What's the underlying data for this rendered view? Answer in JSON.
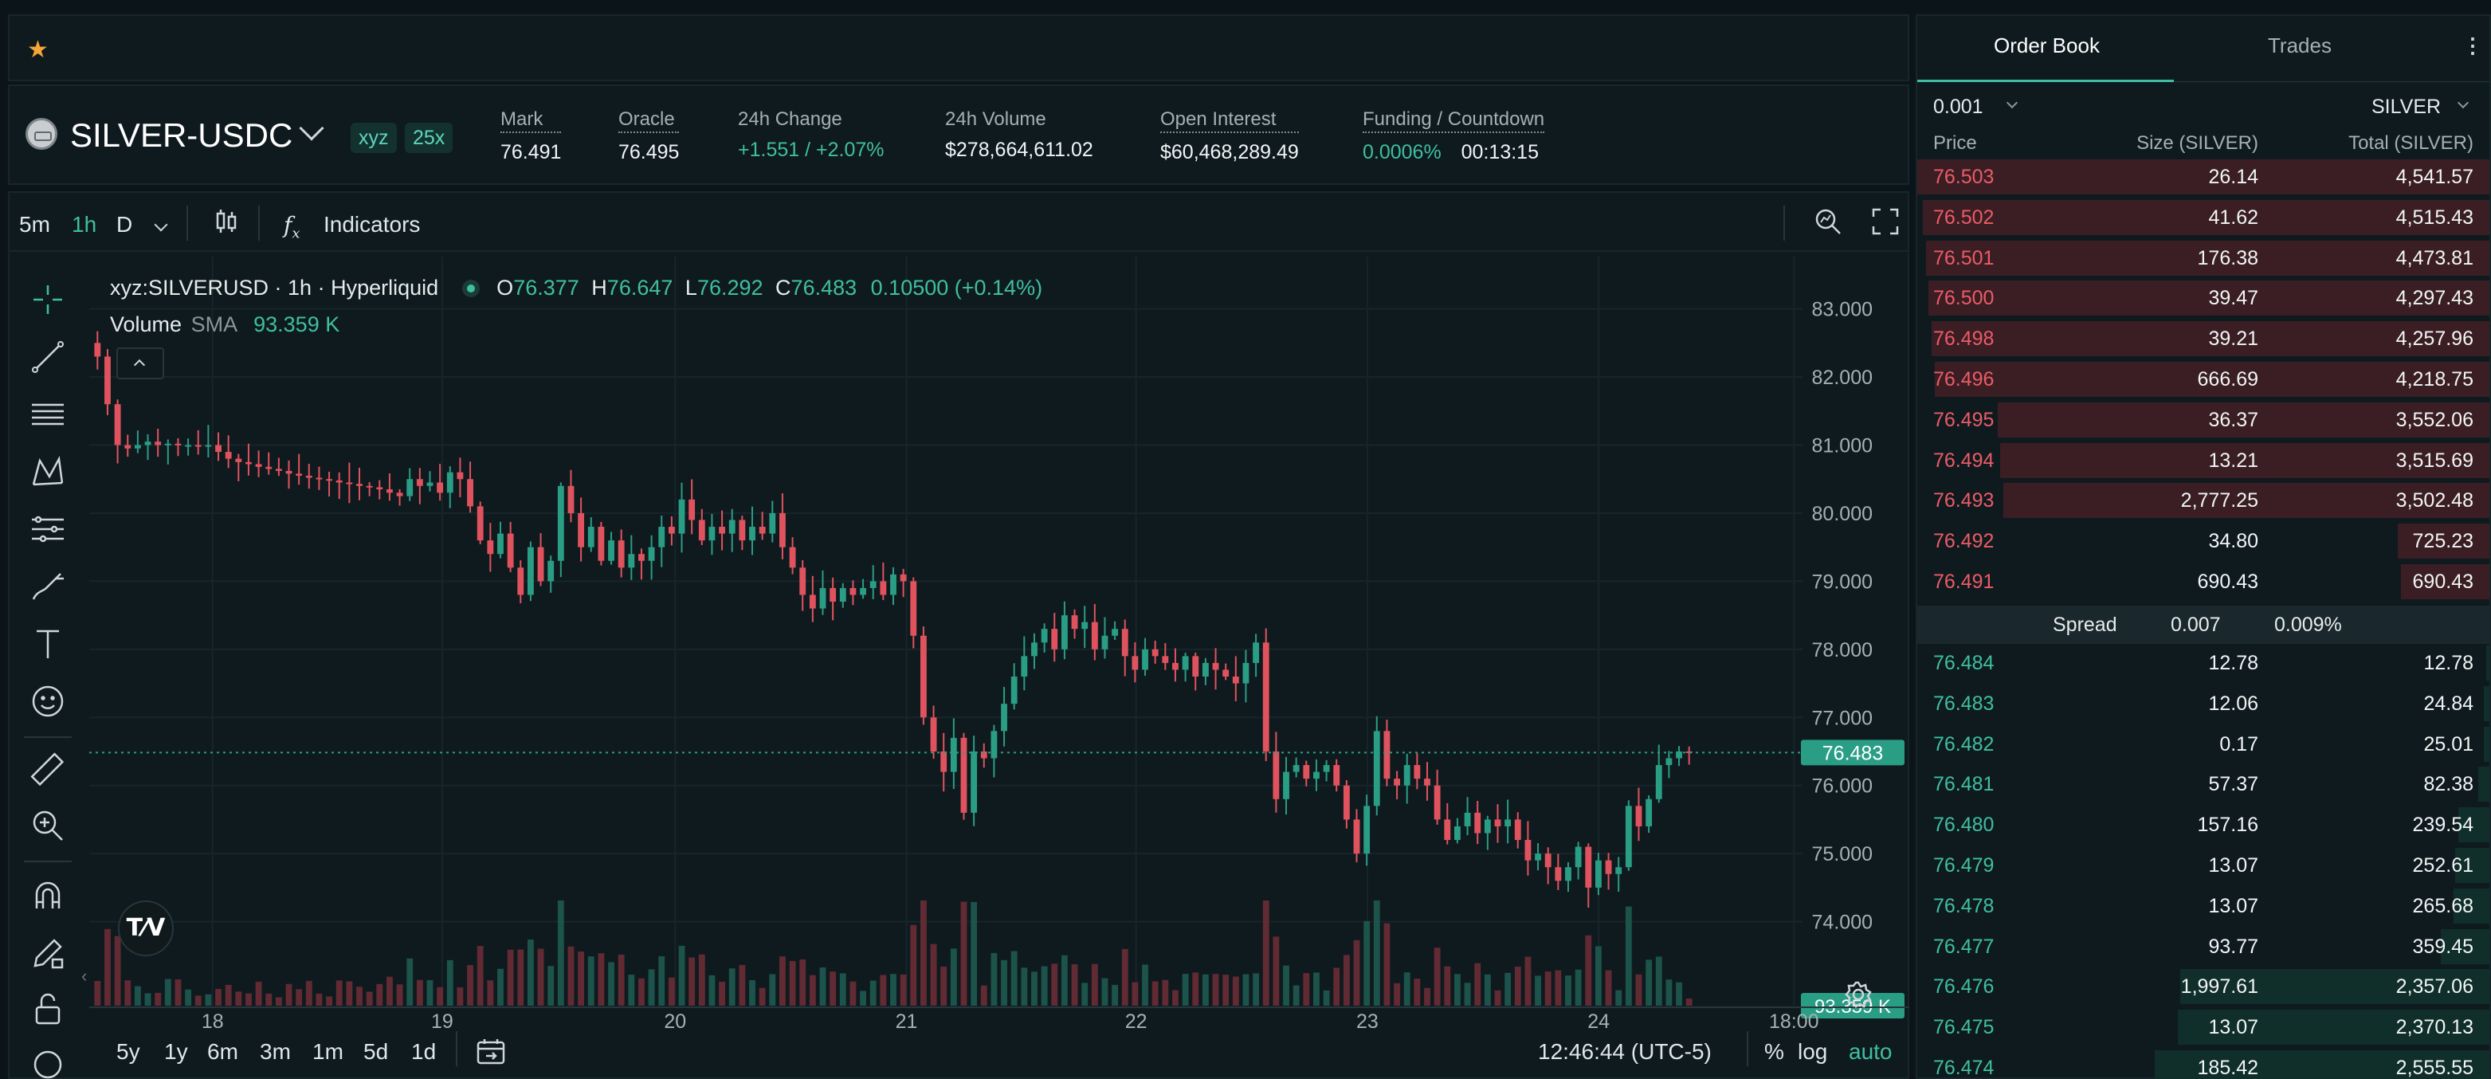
{
  "favorites": {
    "star_icon": "star-icon"
  },
  "header": {
    "symbol": "SILVER-USDC",
    "badges": [
      "xyz",
      "25x"
    ],
    "stats": [
      {
        "label": "Mark",
        "value": "76.491"
      },
      {
        "label": "Oracle",
        "value": "76.495"
      },
      {
        "label": "24h Change",
        "value": "+1.551 / +2.07%"
      },
      {
        "label": "24h Volume",
        "value": "$278,664,611.02"
      },
      {
        "label": "Open Interest",
        "value": "$60,468,289.49"
      },
      {
        "label": "Funding / Countdown",
        "value": "0.0006%",
        "value2": "00:13:15"
      }
    ]
  },
  "toolbar": {
    "intervals": [
      "5m",
      "1h",
      "D"
    ],
    "active_interval": "1h",
    "indicators_label": "Indicators"
  },
  "legend": {
    "symbol": "xyz:SILVERUSD · 1h · Hyperliquid",
    "o_label": "O",
    "o": "76.377",
    "h_label": "H",
    "h": "76.647",
    "l_label": "L",
    "l": "76.292",
    "c_label": "C",
    "c": "76.483",
    "change": "0.10500 (+0.14%)",
    "volume_label": "Volume",
    "sma_label": "SMA",
    "volume_value": "93.359 K"
  },
  "chart_data": {
    "type": "candlestick",
    "x_ticks": [
      "18",
      "19",
      "20",
      "21",
      "22",
      "23",
      "24",
      "18:00"
    ],
    "y_ticks": [
      "83.000",
      "82.000",
      "81.000",
      "80.000",
      "79.000",
      "78.000",
      "77.000",
      "76.000",
      "75.000",
      "74.000"
    ],
    "ylim": [
      73.0,
      83.3
    ],
    "last_price": "76.483",
    "last_volume": "93.359 K",
    "closes": [
      82.3,
      81.6,
      81.0,
      80.95,
      81.0,
      81.05,
      81.0,
      81.02,
      81.0,
      81.0,
      80.98,
      81.0,
      80.9,
      80.8,
      80.75,
      80.72,
      80.68,
      80.65,
      80.62,
      80.58,
      80.55,
      80.52,
      80.5,
      80.48,
      80.45,
      80.43,
      80.4,
      80.38,
      80.35,
      80.3,
      80.25,
      80.5,
      80.4,
      80.45,
      80.3,
      80.6,
      80.5,
      80.1,
      79.6,
      79.4,
      79.7,
      79.2,
      78.8,
      79.5,
      79.0,
      79.3,
      80.4,
      80.0,
      79.5,
      79.8,
      79.3,
      79.6,
      79.2,
      79.4,
      79.3,
      79.5,
      79.8,
      79.7,
      80.2,
      79.9,
      79.6,
      79.8,
      79.7,
      79.9,
      79.6,
      79.8,
      79.7,
      80.0,
      79.5,
      79.2,
      78.8,
      78.6,
      78.9,
      78.7,
      78.9,
      78.8,
      78.9,
      79.0,
      78.8,
      79.1,
      79.0,
      78.2,
      77.0,
      76.5,
      76.2,
      76.7,
      75.6,
      76.5,
      76.4,
      76.8,
      77.2,
      77.6,
      77.9,
      78.1,
      78.3,
      78.0,
      78.5,
      78.3,
      78.4,
      78.0,
      78.2,
      78.3,
      77.9,
      77.7,
      78.0,
      77.9,
      77.8,
      77.7,
      77.9,
      77.6,
      77.8,
      77.7,
      77.6,
      77.5,
      77.8,
      78.1,
      76.5,
      75.8,
      76.2,
      76.3,
      76.1,
      76.2,
      76.3,
      76.0,
      75.5,
      75.0,
      75.7,
      76.8,
      76.1,
      76.0,
      76.3,
      76.1,
      76.0,
      75.5,
      75.2,
      75.4,
      75.6,
      75.3,
      75.5,
      75.4,
      75.5,
      75.2,
      74.9,
      75.0,
      74.8,
      74.6,
      74.8,
      75.1,
      74.5,
      74.9,
      74.7,
      74.8,
      75.7,
      75.4,
      75.8,
      76.3,
      76.4,
      76.5,
      76.48
    ]
  },
  "bottom": {
    "ranges": [
      "5y",
      "1y",
      "6m",
      "3m",
      "1m",
      "5d",
      "1d"
    ],
    "time": "12:46:44 (UTC-5)",
    "percent": "%",
    "log": "log",
    "auto": "auto"
  },
  "orderbook": {
    "tabs": [
      "Order Book",
      "Trades"
    ],
    "tick": "0.001",
    "unit": "SILVER",
    "columns": [
      "Price",
      "Size (SILVER)",
      "Total (SILVER)"
    ],
    "asks": [
      {
        "price": "76.503",
        "size": "26.14",
        "total": "4,541.57",
        "depth": 1.0
      },
      {
        "price": "76.502",
        "size": "41.62",
        "total": "4,515.43",
        "depth": 0.99
      },
      {
        "price": "76.501",
        "size": "176.38",
        "total": "4,473.81",
        "depth": 0.985
      },
      {
        "price": "76.500",
        "size": "39.47",
        "total": "4,297.43",
        "depth": 0.98
      },
      {
        "price": "76.498",
        "size": "39.21",
        "total": "4,257.96",
        "depth": 0.975
      },
      {
        "price": "76.496",
        "size": "666.69",
        "total": "4,218.75",
        "depth": 0.97
      },
      {
        "price": "76.495",
        "size": "36.37",
        "total": "3,552.06",
        "depth": 0.86
      },
      {
        "price": "76.494",
        "size": "13.21",
        "total": "3,515.69",
        "depth": 0.855
      },
      {
        "price": "76.493",
        "size": "2,777.25",
        "total": "3,502.48",
        "depth": 0.85
      },
      {
        "price": "76.492",
        "size": "34.80",
        "total": "725.23",
        "depth": 0.16
      },
      {
        "price": "76.491",
        "size": "690.43",
        "total": "690.43",
        "depth": 0.155
      }
    ],
    "spread_label": "Spread",
    "spread_value": "0.007",
    "spread_pct": "0.009%",
    "bids": [
      {
        "price": "76.484",
        "size": "12.78",
        "total": "12.78",
        "depth": 0.005
      },
      {
        "price": "76.483",
        "size": "12.06",
        "total": "24.84",
        "depth": 0.01
      },
      {
        "price": "76.482",
        "size": "0.17",
        "total": "25.01",
        "depth": 0.01
      },
      {
        "price": "76.481",
        "size": "57.37",
        "total": "82.38",
        "depth": 0.02
      },
      {
        "price": "76.480",
        "size": "157.16",
        "total": "239.54",
        "depth": 0.055
      },
      {
        "price": "76.479",
        "size": "13.07",
        "total": "252.61",
        "depth": 0.06
      },
      {
        "price": "76.478",
        "size": "13.07",
        "total": "265.68",
        "depth": 0.062
      },
      {
        "price": "76.477",
        "size": "93.77",
        "total": "359.45",
        "depth": 0.085
      },
      {
        "price": "76.476",
        "size": "1,997.61",
        "total": "2,357.06",
        "depth": 0.54
      },
      {
        "price": "76.475",
        "size": "13.07",
        "total": "2,370.13",
        "depth": 0.545
      },
      {
        "price": "76.474",
        "size": "185.42",
        "total": "2,555.55",
        "depth": 0.585
      }
    ]
  },
  "colors": {
    "up": "#2a9d85",
    "down": "#e0535e",
    "accent": "#3fbfa1"
  }
}
